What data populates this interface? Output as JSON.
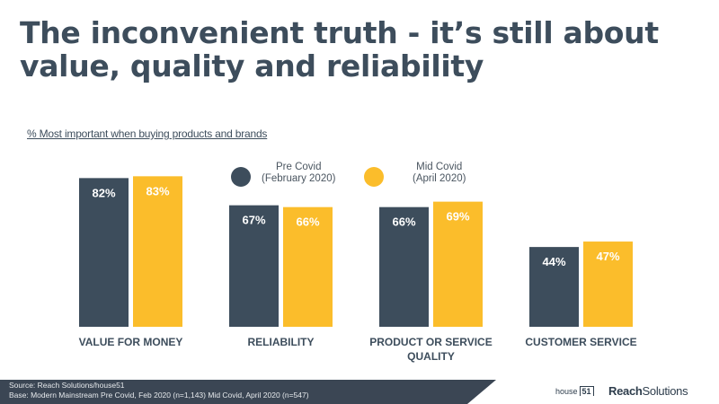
{
  "header": {
    "title": "The inconvenient truth - it’s still about value, quality and reliability",
    "subtitle": "% Most important when buying products and brands"
  },
  "legend": [
    {
      "line1": "Pre Covid",
      "line2": "(February 2020)",
      "color": "#3d4d5c"
    },
    {
      "line1": "Mid Covid",
      "line2": "(April 2020)",
      "color": "#fbbd2b"
    }
  ],
  "chart_data": {
    "type": "bar",
    "categories": [
      [
        "VALUE FOR MONEY"
      ],
      [
        "RELIABILITY"
      ],
      [
        "PRODUCT OR SERVICE",
        "QUALITY"
      ],
      [
        "CUSTOMER SERVICE"
      ]
    ],
    "series": [
      {
        "name": "Pre Covid (February 2020)",
        "color": "#3d4d5c",
        "values": [
          82,
          67,
          66,
          44
        ],
        "labels": [
          "82%",
          "67%",
          "66%",
          "44%"
        ]
      },
      {
        "name": "Mid Covid (April 2020)",
        "color": "#fbbd2b",
        "values": [
          83,
          66,
          69,
          47
        ],
        "labels": [
          "83%",
          "66%",
          "69%",
          "47%"
        ]
      }
    ],
    "ylim": [
      0,
      100
    ],
    "grid": false,
    "legend_position": "top"
  },
  "footer": {
    "source": "Source: Reach Solutions/house51",
    "base": "Base: Modern Mainstream  Pre Covid, Feb 2020 (n=1,143) Mid Covid, April 2020 (n=547)",
    "logo_house": "house",
    "logo_num": "51",
    "logo_reach": "Reach",
    "logo_solutions": "Solutions"
  }
}
